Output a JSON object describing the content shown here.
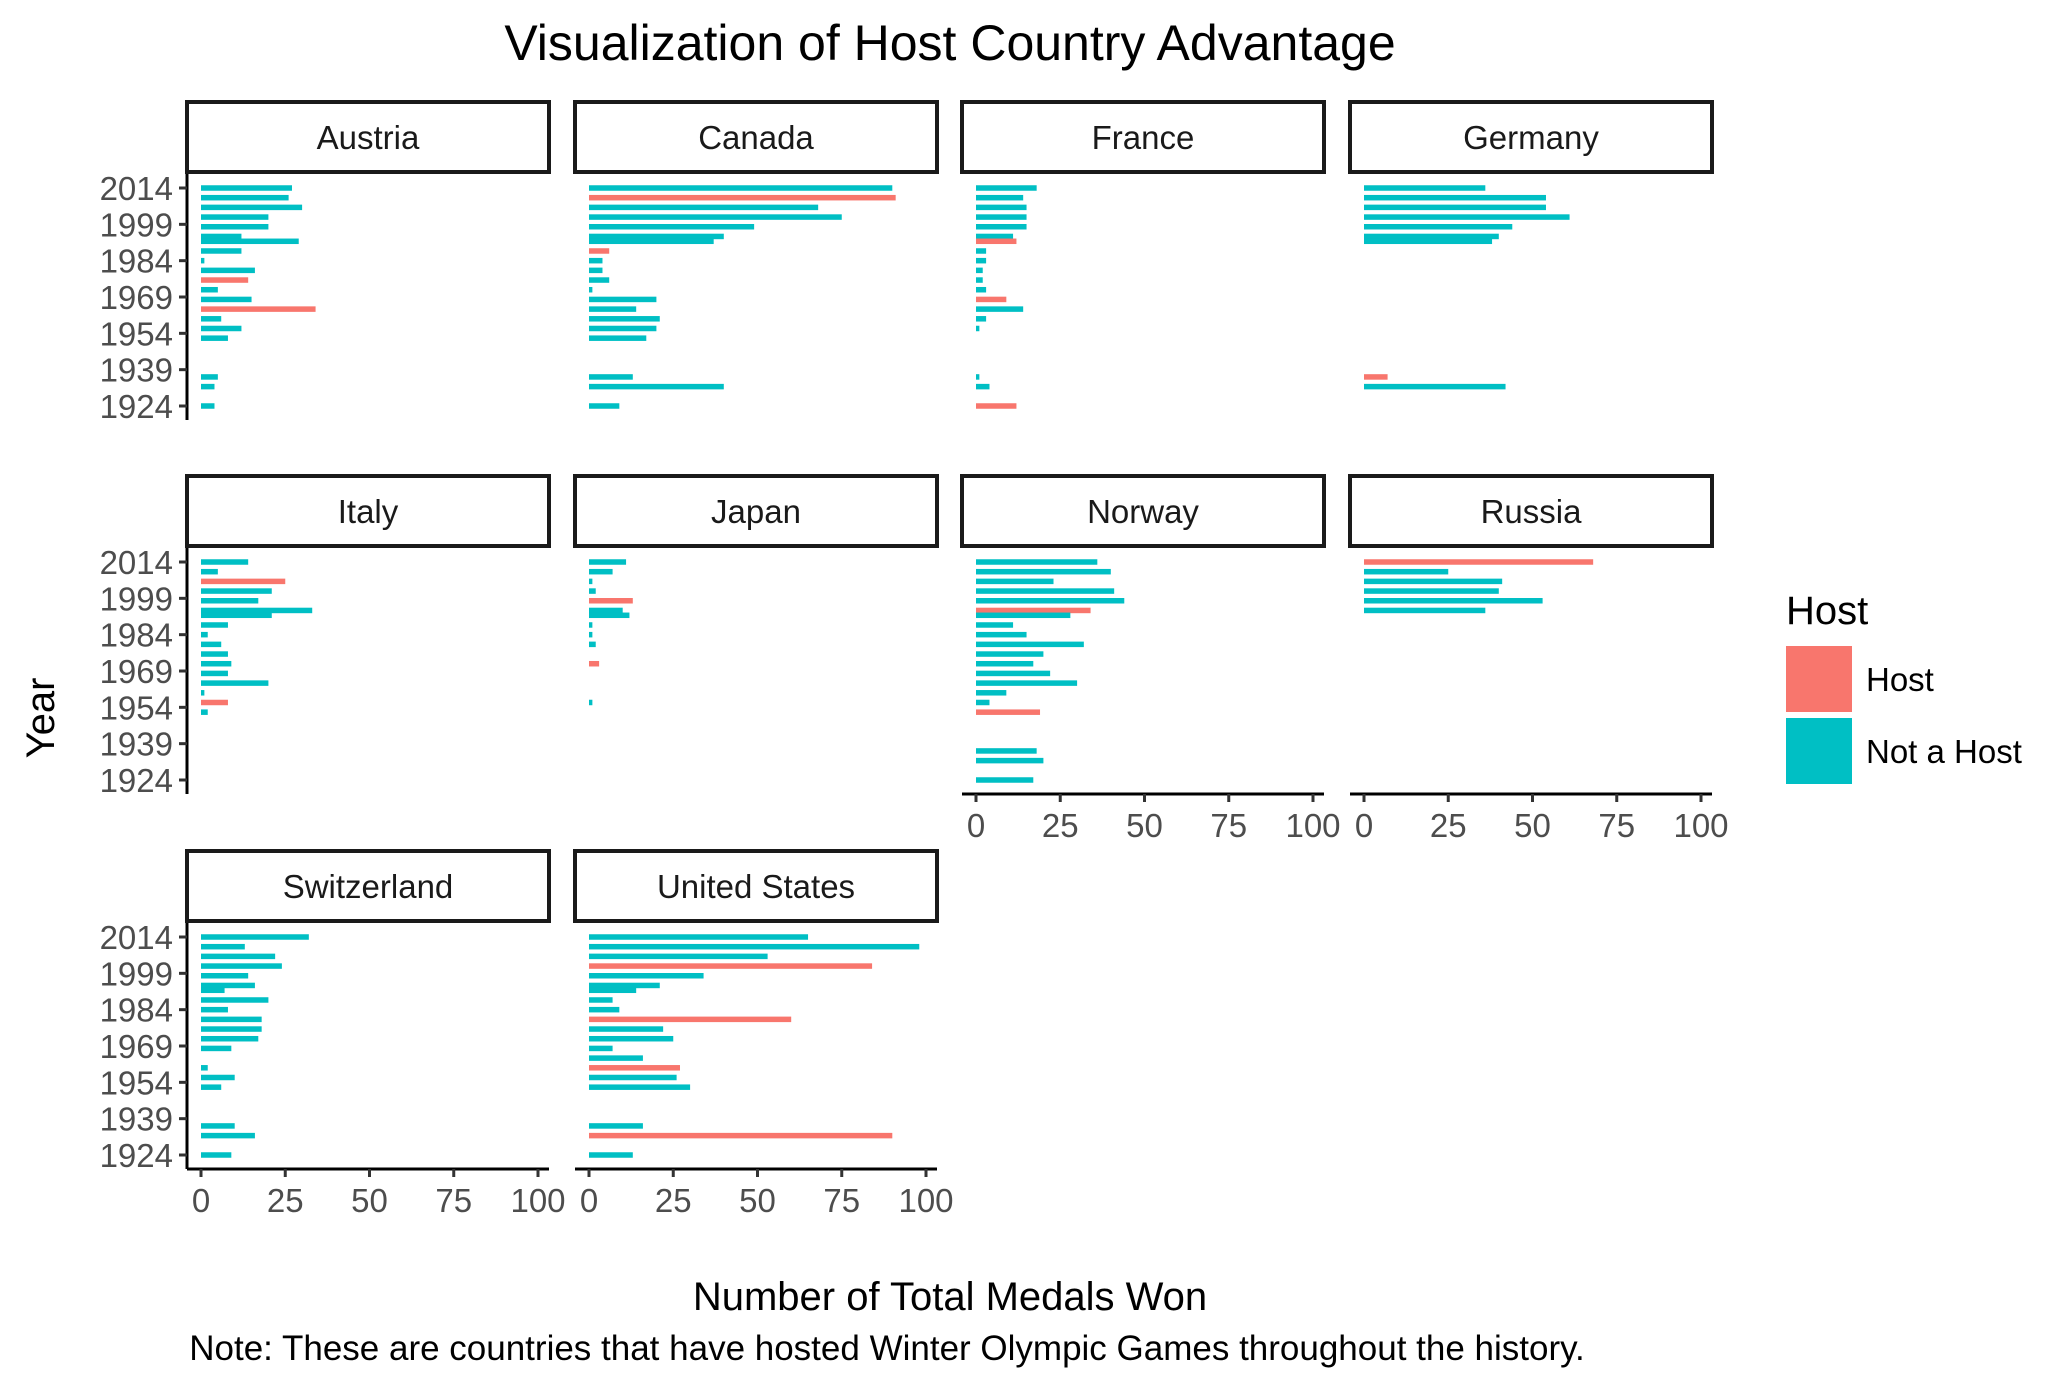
{
  "chart_data": {
    "type": "bar",
    "orientation": "horizontal",
    "title": "Visualization of Host Country Advantage",
    "xlabel": "Number of Total Medals Won",
    "ylabel": "Year",
    "caption": "Note: These are countries that have hosted Winter Olympic Games throughout the history.",
    "xlim": [
      0,
      100
    ],
    "x_ticks": [
      "0",
      "25",
      "50",
      "75",
      "100"
    ],
    "ylim": [
      1924,
      2014
    ],
    "y_ticks": [
      "2014",
      "1999",
      "1984",
      "1969",
      "1954",
      "1939",
      "1924"
    ],
    "grid": false,
    "legend": {
      "title": "Host",
      "placement": "right",
      "entries": [
        {
          "key": "Host",
          "label": "Host",
          "color": "#F8766D"
        },
        {
          "key": "Not a Host",
          "label": "Not a Host",
          "color": "#00BFC4"
        }
      ]
    },
    "facets": [
      {
        "name": "Austria",
        "data": [
          {
            "year": 2014,
            "medals": 27,
            "host": "Not a Host"
          },
          {
            "year": 2010,
            "medals": 26,
            "host": "Not a Host"
          },
          {
            "year": 2006,
            "medals": 30,
            "host": "Not a Host"
          },
          {
            "year": 2002,
            "medals": 20,
            "host": "Not a Host"
          },
          {
            "year": 1998,
            "medals": 20,
            "host": "Not a Host"
          },
          {
            "year": 1994,
            "medals": 12,
            "host": "Not a Host"
          },
          {
            "year": 1992,
            "medals": 29,
            "host": "Not a Host"
          },
          {
            "year": 1988,
            "medals": 12,
            "host": "Not a Host"
          },
          {
            "year": 1984,
            "medals": 1,
            "host": "Not a Host"
          },
          {
            "year": 1980,
            "medals": 16,
            "host": "Not a Host"
          },
          {
            "year": 1976,
            "medals": 14,
            "host": "Host"
          },
          {
            "year": 1972,
            "medals": 5,
            "host": "Not a Host"
          },
          {
            "year": 1968,
            "medals": 15,
            "host": "Not a Host"
          },
          {
            "year": 1964,
            "medals": 34,
            "host": "Host"
          },
          {
            "year": 1960,
            "medals": 6,
            "host": "Not a Host"
          },
          {
            "year": 1956,
            "medals": 12,
            "host": "Not a Host"
          },
          {
            "year": 1952,
            "medals": 8,
            "host": "Not a Host"
          },
          {
            "year": 1936,
            "medals": 5,
            "host": "Not a Host"
          },
          {
            "year": 1932,
            "medals": 4,
            "host": "Not a Host"
          },
          {
            "year": 1924,
            "medals": 4,
            "host": "Not a Host"
          }
        ]
      },
      {
        "name": "Canada",
        "data": [
          {
            "year": 2014,
            "medals": 90,
            "host": "Not a Host"
          },
          {
            "year": 2010,
            "medals": 91,
            "host": "Host"
          },
          {
            "year": 2006,
            "medals": 68,
            "host": "Not a Host"
          },
          {
            "year": 2002,
            "medals": 75,
            "host": "Not a Host"
          },
          {
            "year": 1998,
            "medals": 49,
            "host": "Not a Host"
          },
          {
            "year": 1994,
            "medals": 40,
            "host": "Not a Host"
          },
          {
            "year": 1992,
            "medals": 37,
            "host": "Not a Host"
          },
          {
            "year": 1988,
            "medals": 6,
            "host": "Host"
          },
          {
            "year": 1984,
            "medals": 4,
            "host": "Not a Host"
          },
          {
            "year": 1980,
            "medals": 4,
            "host": "Not a Host"
          },
          {
            "year": 1976,
            "medals": 6,
            "host": "Not a Host"
          },
          {
            "year": 1972,
            "medals": 1,
            "host": "Not a Host"
          },
          {
            "year": 1968,
            "medals": 20,
            "host": "Not a Host"
          },
          {
            "year": 1964,
            "medals": 14,
            "host": "Not a Host"
          },
          {
            "year": 1960,
            "medals": 21,
            "host": "Not a Host"
          },
          {
            "year": 1956,
            "medals": 20,
            "host": "Not a Host"
          },
          {
            "year": 1952,
            "medals": 17,
            "host": "Not a Host"
          },
          {
            "year": 1936,
            "medals": 13,
            "host": "Not a Host"
          },
          {
            "year": 1932,
            "medals": 40,
            "host": "Not a Host"
          },
          {
            "year": 1924,
            "medals": 9,
            "host": "Not a Host"
          }
        ]
      },
      {
        "name": "France",
        "data": [
          {
            "year": 2014,
            "medals": 18,
            "host": "Not a Host"
          },
          {
            "year": 2010,
            "medals": 14,
            "host": "Not a Host"
          },
          {
            "year": 2006,
            "medals": 15,
            "host": "Not a Host"
          },
          {
            "year": 2002,
            "medals": 15,
            "host": "Not a Host"
          },
          {
            "year": 1998,
            "medals": 15,
            "host": "Not a Host"
          },
          {
            "year": 1994,
            "medals": 11,
            "host": "Not a Host"
          },
          {
            "year": 1992,
            "medals": 12,
            "host": "Host"
          },
          {
            "year": 1988,
            "medals": 3,
            "host": "Not a Host"
          },
          {
            "year": 1984,
            "medals": 3,
            "host": "Not a Host"
          },
          {
            "year": 1980,
            "medals": 2,
            "host": "Not a Host"
          },
          {
            "year": 1976,
            "medals": 2,
            "host": "Not a Host"
          },
          {
            "year": 1972,
            "medals": 3,
            "host": "Not a Host"
          },
          {
            "year": 1968,
            "medals": 9,
            "host": "Host"
          },
          {
            "year": 1964,
            "medals": 14,
            "host": "Not a Host"
          },
          {
            "year": 1960,
            "medals": 3,
            "host": "Not a Host"
          },
          {
            "year": 1956,
            "medals": 1,
            "host": "Not a Host"
          },
          {
            "year": 1936,
            "medals": 1,
            "host": "Not a Host"
          },
          {
            "year": 1932,
            "medals": 4,
            "host": "Not a Host"
          },
          {
            "year": 1924,
            "medals": 12,
            "host": "Host"
          }
        ]
      },
      {
        "name": "Germany",
        "data": [
          {
            "year": 2014,
            "medals": 36,
            "host": "Not a Host"
          },
          {
            "year": 2010,
            "medals": 54,
            "host": "Not a Host"
          },
          {
            "year": 2006,
            "medals": 54,
            "host": "Not a Host"
          },
          {
            "year": 2002,
            "medals": 61,
            "host": "Not a Host"
          },
          {
            "year": 1998,
            "medals": 44,
            "host": "Not a Host"
          },
          {
            "year": 1994,
            "medals": 40,
            "host": "Not a Host"
          },
          {
            "year": 1992,
            "medals": 38,
            "host": "Not a Host"
          },
          {
            "year": 1936,
            "medals": 7,
            "host": "Host"
          },
          {
            "year": 1932,
            "medals": 42,
            "host": "Not a Host"
          }
        ]
      },
      {
        "name": "Italy",
        "data": [
          {
            "year": 2014,
            "medals": 14,
            "host": "Not a Host"
          },
          {
            "year": 2010,
            "medals": 5,
            "host": "Not a Host"
          },
          {
            "year": 2006,
            "medals": 25,
            "host": "Host"
          },
          {
            "year": 2002,
            "medals": 21,
            "host": "Not a Host"
          },
          {
            "year": 1998,
            "medals": 17,
            "host": "Not a Host"
          },
          {
            "year": 1994,
            "medals": 33,
            "host": "Not a Host"
          },
          {
            "year": 1992,
            "medals": 21,
            "host": "Not a Host"
          },
          {
            "year": 1988,
            "medals": 8,
            "host": "Not a Host"
          },
          {
            "year": 1984,
            "medals": 2,
            "host": "Not a Host"
          },
          {
            "year": 1980,
            "medals": 6,
            "host": "Not a Host"
          },
          {
            "year": 1976,
            "medals": 8,
            "host": "Not a Host"
          },
          {
            "year": 1972,
            "medals": 9,
            "host": "Not a Host"
          },
          {
            "year": 1968,
            "medals": 8,
            "host": "Not a Host"
          },
          {
            "year": 1964,
            "medals": 20,
            "host": "Not a Host"
          },
          {
            "year": 1960,
            "medals": 1,
            "host": "Not a Host"
          },
          {
            "year": 1956,
            "medals": 8,
            "host": "Host"
          },
          {
            "year": 1952,
            "medals": 2,
            "host": "Not a Host"
          }
        ]
      },
      {
        "name": "Japan",
        "data": [
          {
            "year": 2014,
            "medals": 11,
            "host": "Not a Host"
          },
          {
            "year": 2010,
            "medals": 7,
            "host": "Not a Host"
          },
          {
            "year": 2006,
            "medals": 1,
            "host": "Not a Host"
          },
          {
            "year": 2002,
            "medals": 2,
            "host": "Not a Host"
          },
          {
            "year": 1998,
            "medals": 13,
            "host": "Host"
          },
          {
            "year": 1994,
            "medals": 10,
            "host": "Not a Host"
          },
          {
            "year": 1992,
            "medals": 12,
            "host": "Not a Host"
          },
          {
            "year": 1988,
            "medals": 1,
            "host": "Not a Host"
          },
          {
            "year": 1984,
            "medals": 1,
            "host": "Not a Host"
          },
          {
            "year": 1980,
            "medals": 2,
            "host": "Not a Host"
          },
          {
            "year": 1972,
            "medals": 3,
            "host": "Host"
          },
          {
            "year": 1956,
            "medals": 1,
            "host": "Not a Host"
          }
        ]
      },
      {
        "name": "Norway",
        "data": [
          {
            "year": 2014,
            "medals": 36,
            "host": "Not a Host"
          },
          {
            "year": 2010,
            "medals": 40,
            "host": "Not a Host"
          },
          {
            "year": 2006,
            "medals": 23,
            "host": "Not a Host"
          },
          {
            "year": 2002,
            "medals": 41,
            "host": "Not a Host"
          },
          {
            "year": 1998,
            "medals": 44,
            "host": "Not a Host"
          },
          {
            "year": 1994,
            "medals": 34,
            "host": "Host"
          },
          {
            "year": 1992,
            "medals": 28,
            "host": "Not a Host"
          },
          {
            "year": 1988,
            "medals": 11,
            "host": "Not a Host"
          },
          {
            "year": 1984,
            "medals": 15,
            "host": "Not a Host"
          },
          {
            "year": 1980,
            "medals": 32,
            "host": "Not a Host"
          },
          {
            "year": 1976,
            "medals": 20,
            "host": "Not a Host"
          },
          {
            "year": 1972,
            "medals": 17,
            "host": "Not a Host"
          },
          {
            "year": 1968,
            "medals": 22,
            "host": "Not a Host"
          },
          {
            "year": 1964,
            "medals": 30,
            "host": "Not a Host"
          },
          {
            "year": 1960,
            "medals": 9,
            "host": "Not a Host"
          },
          {
            "year": 1956,
            "medals": 4,
            "host": "Not a Host"
          },
          {
            "year": 1952,
            "medals": 19,
            "host": "Host"
          },
          {
            "year": 1936,
            "medals": 18,
            "host": "Not a Host"
          },
          {
            "year": 1932,
            "medals": 20,
            "host": "Not a Host"
          },
          {
            "year": 1924,
            "medals": 17,
            "host": "Not a Host"
          }
        ]
      },
      {
        "name": "Russia",
        "data": [
          {
            "year": 2014,
            "medals": 68,
            "host": "Host"
          },
          {
            "year": 2010,
            "medals": 25,
            "host": "Not a Host"
          },
          {
            "year": 2006,
            "medals": 41,
            "host": "Not a Host"
          },
          {
            "year": 2002,
            "medals": 40,
            "host": "Not a Host"
          },
          {
            "year": 1998,
            "medals": 53,
            "host": "Not a Host"
          },
          {
            "year": 1994,
            "medals": 36,
            "host": "Not a Host"
          }
        ]
      },
      {
        "name": "Switzerland",
        "data": [
          {
            "year": 2014,
            "medals": 32,
            "host": "Not a Host"
          },
          {
            "year": 2010,
            "medals": 13,
            "host": "Not a Host"
          },
          {
            "year": 2006,
            "medals": 22,
            "host": "Not a Host"
          },
          {
            "year": 2002,
            "medals": 24,
            "host": "Not a Host"
          },
          {
            "year": 1998,
            "medals": 14,
            "host": "Not a Host"
          },
          {
            "year": 1994,
            "medals": 16,
            "host": "Not a Host"
          },
          {
            "year": 1992,
            "medals": 7,
            "host": "Not a Host"
          },
          {
            "year": 1988,
            "medals": 20,
            "host": "Not a Host"
          },
          {
            "year": 1984,
            "medals": 8,
            "host": "Not a Host"
          },
          {
            "year": 1980,
            "medals": 18,
            "host": "Not a Host"
          },
          {
            "year": 1976,
            "medals": 18,
            "host": "Not a Host"
          },
          {
            "year": 1972,
            "medals": 17,
            "host": "Not a Host"
          },
          {
            "year": 1968,
            "medals": 9,
            "host": "Not a Host"
          },
          {
            "year": 1960,
            "medals": 2,
            "host": "Not a Host"
          },
          {
            "year": 1956,
            "medals": 10,
            "host": "Not a Host"
          },
          {
            "year": 1952,
            "medals": 6,
            "host": "Not a Host"
          },
          {
            "year": 1936,
            "medals": 10,
            "host": "Not a Host"
          },
          {
            "year": 1932,
            "medals": 16,
            "host": "Not a Host"
          },
          {
            "year": 1924,
            "medals": 9,
            "host": "Not a Host"
          }
        ]
      },
      {
        "name": "United States",
        "data": [
          {
            "year": 2014,
            "medals": 65,
            "host": "Not a Host"
          },
          {
            "year": 2010,
            "medals": 98,
            "host": "Not a Host"
          },
          {
            "year": 2006,
            "medals": 53,
            "host": "Not a Host"
          },
          {
            "year": 2002,
            "medals": 84,
            "host": "Host"
          },
          {
            "year": 1998,
            "medals": 34,
            "host": "Not a Host"
          },
          {
            "year": 1994,
            "medals": 21,
            "host": "Not a Host"
          },
          {
            "year": 1992,
            "medals": 14,
            "host": "Not a Host"
          },
          {
            "year": 1988,
            "medals": 7,
            "host": "Not a Host"
          },
          {
            "year": 1984,
            "medals": 9,
            "host": "Not a Host"
          },
          {
            "year": 1980,
            "medals": 60,
            "host": "Host"
          },
          {
            "year": 1976,
            "medals": 22,
            "host": "Not a Host"
          },
          {
            "year": 1972,
            "medals": 25,
            "host": "Not a Host"
          },
          {
            "year": 1968,
            "medals": 7,
            "host": "Not a Host"
          },
          {
            "year": 1964,
            "medals": 16,
            "host": "Not a Host"
          },
          {
            "year": 1960,
            "medals": 27,
            "host": "Host"
          },
          {
            "year": 1956,
            "medals": 26,
            "host": "Not a Host"
          },
          {
            "year": 1952,
            "medals": 30,
            "host": "Not a Host"
          },
          {
            "year": 1936,
            "medals": 16,
            "host": "Not a Host"
          },
          {
            "year": 1932,
            "medals": 90,
            "host": "Host"
          },
          {
            "year": 1924,
            "medals": 13,
            "host": "Not a Host"
          }
        ]
      }
    ]
  }
}
